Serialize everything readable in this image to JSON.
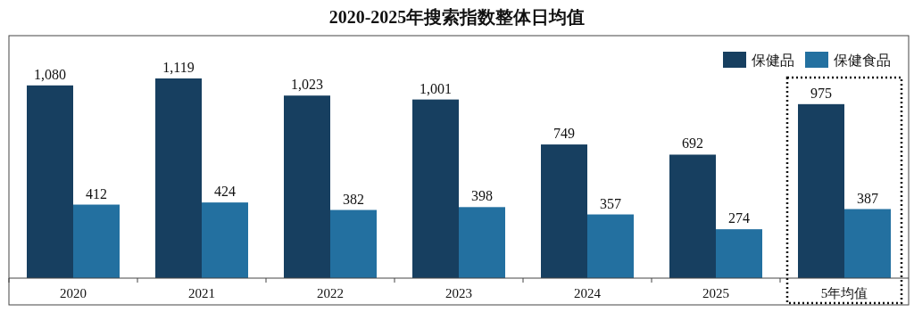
{
  "chart_data": {
    "type": "bar",
    "title": "2020-2025年搜索指数整体日均值",
    "categories": [
      "2020",
      "2021",
      "2022",
      "2023",
      "2024",
      "2025",
      "5年均值"
    ],
    "series": [
      {
        "name": "保健品",
        "color": "#173f60",
        "values": [
          1080,
          1119,
          1023,
          1001,
          749,
          692,
          975
        ],
        "value_labels": [
          "1,080",
          "1,119",
          "1,023",
          "1,001",
          "749",
          "692",
          "975"
        ]
      },
      {
        "name": "保健食品",
        "color": "#2370a0",
        "values": [
          412,
          424,
          382,
          398,
          357,
          274,
          387
        ],
        "value_labels": [
          "412",
          "424",
          "382",
          "398",
          "357",
          "274",
          "387"
        ]
      }
    ],
    "legend": "top right"
  }
}
